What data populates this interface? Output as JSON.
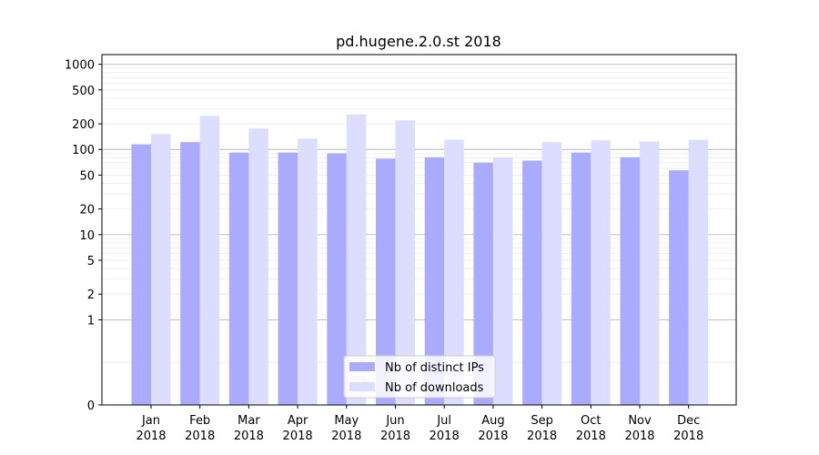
{
  "chart_data": {
    "type": "bar",
    "title": "pd.hugene.2.0.st 2018",
    "xlabel": "",
    "ylabel": "",
    "yscale": "symlog",
    "ylim": [
      0,
      1300
    ],
    "yticks": [
      0,
      1,
      2,
      5,
      10,
      20,
      50,
      100,
      200,
      500,
      1000
    ],
    "grid": true,
    "legend_position": "bottom-center",
    "categories": [
      [
        "Jan",
        "2018"
      ],
      [
        "Feb",
        "2018"
      ],
      [
        "Mar",
        "2018"
      ],
      [
        "Apr",
        "2018"
      ],
      [
        "May",
        "2018"
      ],
      [
        "Jun",
        "2018"
      ],
      [
        "Jul",
        "2018"
      ],
      [
        "Aug",
        "2018"
      ],
      [
        "Sep",
        "2018"
      ],
      [
        "Oct",
        "2018"
      ],
      [
        "Nov",
        "2018"
      ],
      [
        "Dec",
        "2018"
      ]
    ],
    "series": [
      {
        "name": "Nb of distinct IPs",
        "color": "#aaaaff",
        "values": [
          115,
          122,
          92,
          92,
          90,
          78,
          81,
          70,
          74,
          92,
          81,
          57
        ]
      },
      {
        "name": "Nb of downloads",
        "color": "#ddddff",
        "values": [
          152,
          248,
          176,
          134,
          258,
          220,
          130,
          81,
          122,
          128,
          124,
          130
        ]
      }
    ]
  }
}
